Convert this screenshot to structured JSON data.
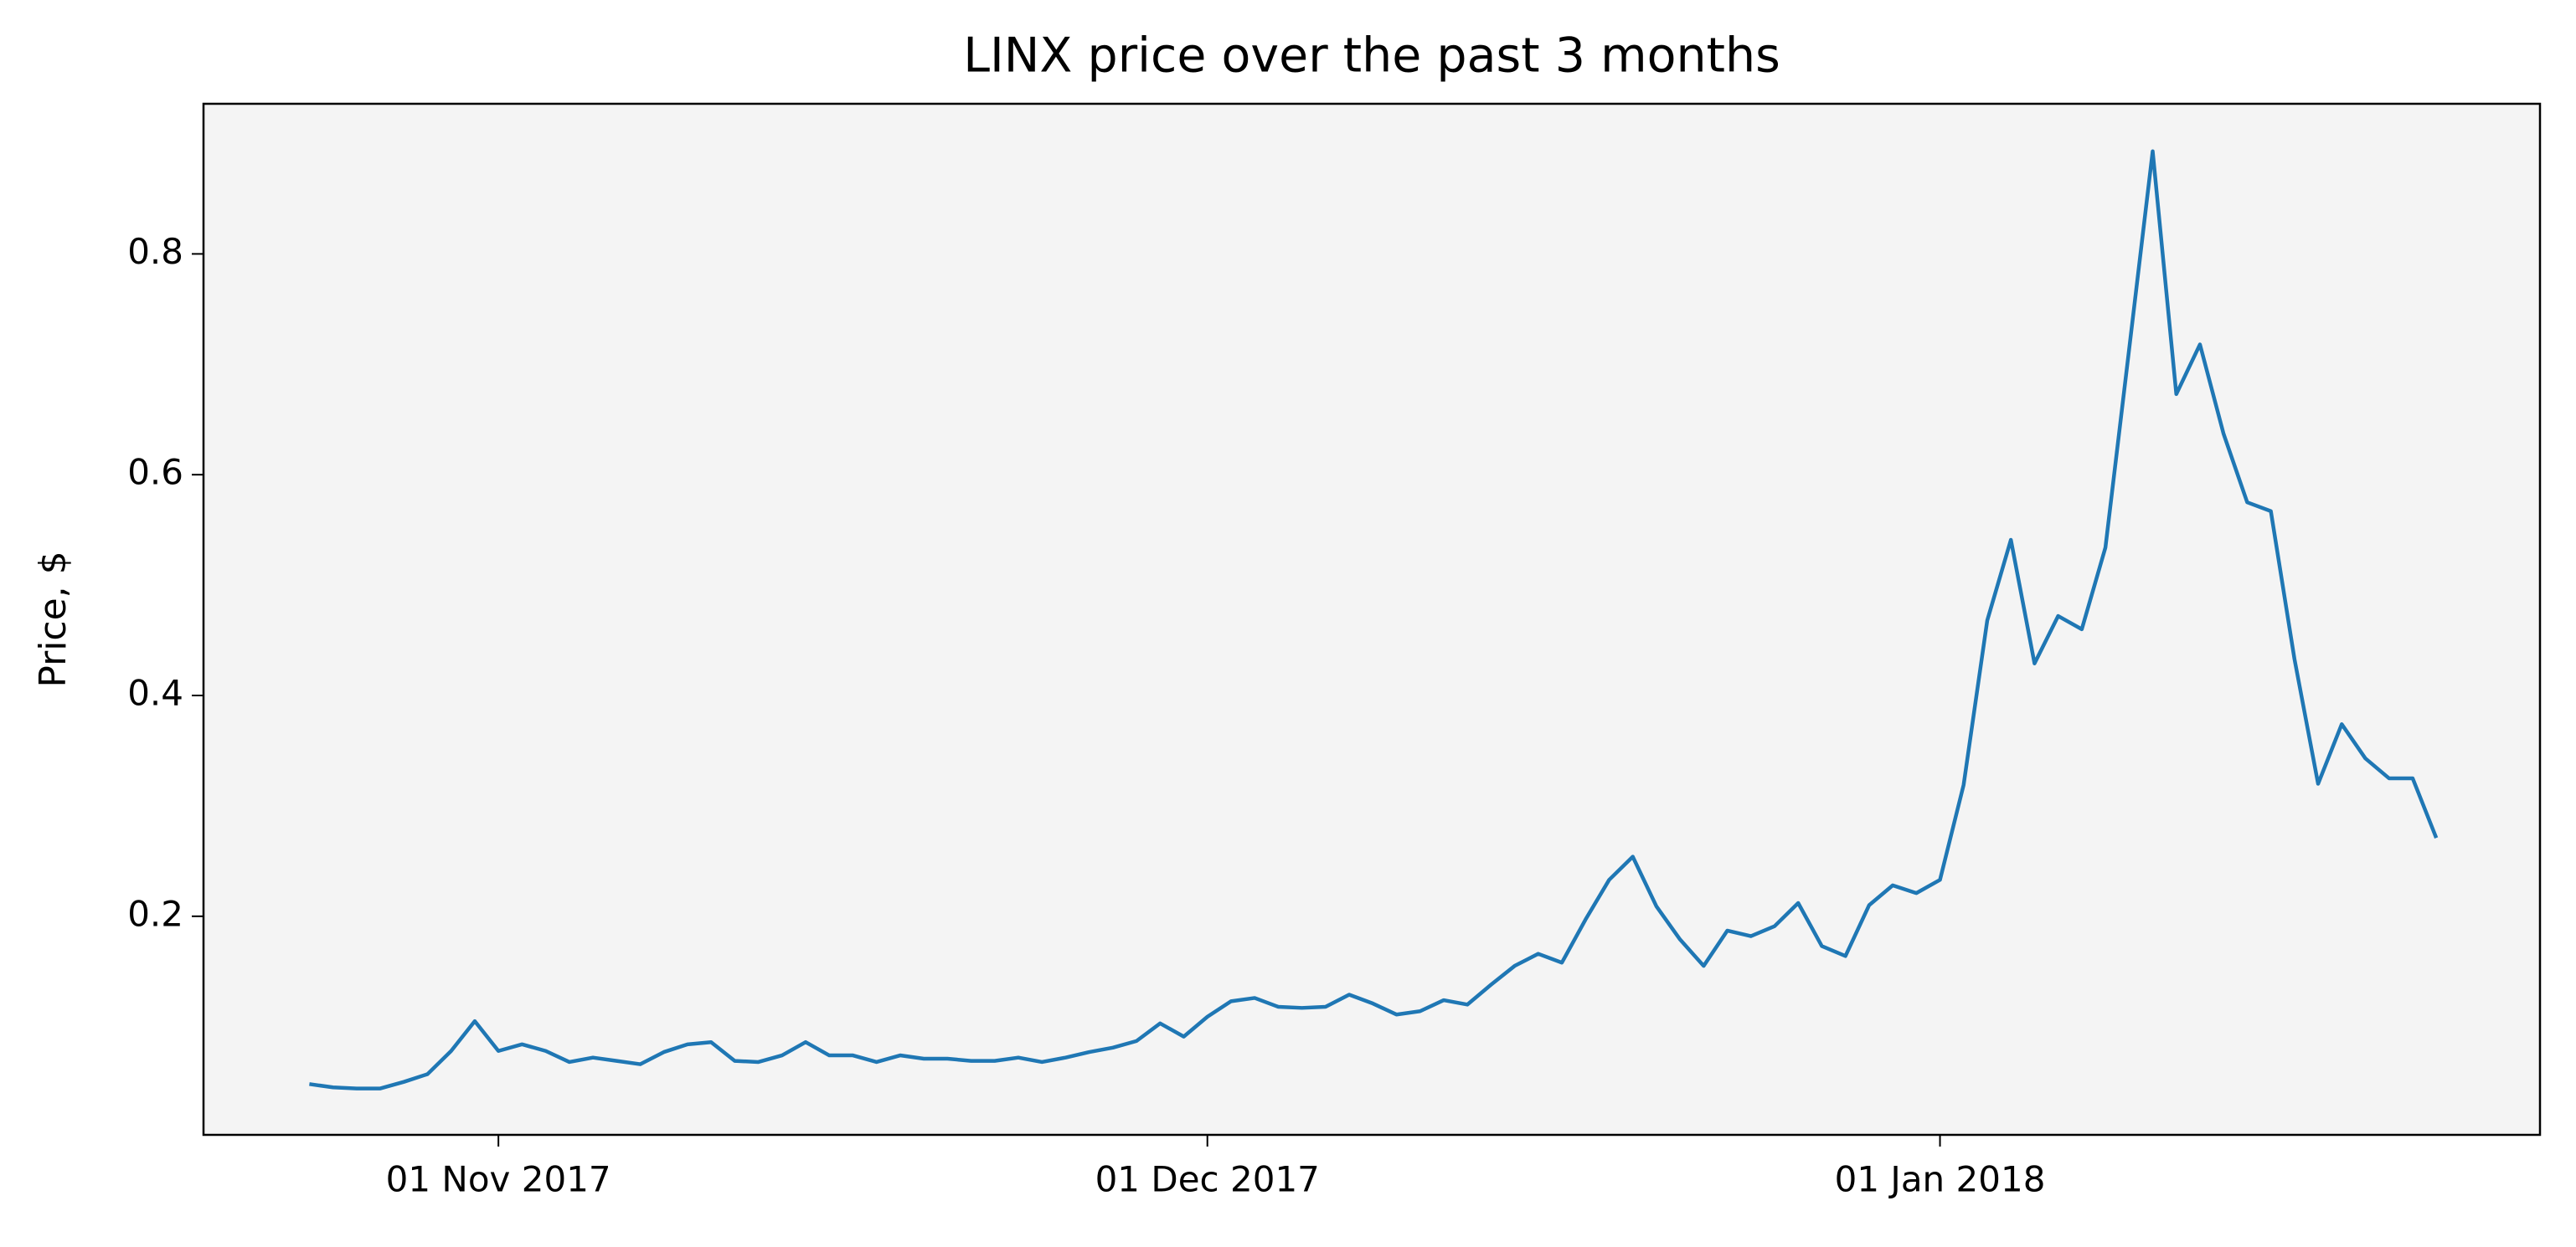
{
  "chart_data": {
    "type": "line",
    "title": "LINX price over the past 3 months",
    "ylabel": "Price, $",
    "color": "#1f77b4",
    "x": [
      "2017-10-24",
      "2017-10-25",
      "2017-10-26",
      "2017-10-27",
      "2017-10-28",
      "2017-10-29",
      "2017-10-30",
      "2017-10-31",
      "2017-11-01",
      "2017-11-02",
      "2017-11-03",
      "2017-11-04",
      "2017-11-05",
      "2017-11-06",
      "2017-11-07",
      "2017-11-08",
      "2017-11-09",
      "2017-11-10",
      "2017-11-11",
      "2017-11-12",
      "2017-11-13",
      "2017-11-14",
      "2017-11-15",
      "2017-11-16",
      "2017-11-17",
      "2017-11-18",
      "2017-11-19",
      "2017-11-20",
      "2017-11-21",
      "2017-11-22",
      "2017-11-23",
      "2017-11-24",
      "2017-11-25",
      "2017-11-26",
      "2017-11-27",
      "2017-11-28",
      "2017-11-29",
      "2017-11-30",
      "2017-12-01",
      "2017-12-02",
      "2017-12-03",
      "2017-12-04",
      "2017-12-05",
      "2017-12-06",
      "2017-12-07",
      "2017-12-08",
      "2017-12-09",
      "2017-12-10",
      "2017-12-11",
      "2017-12-12",
      "2017-12-13",
      "2017-12-14",
      "2017-12-15",
      "2017-12-16",
      "2017-12-17",
      "2017-12-18",
      "2017-12-19",
      "2017-12-20",
      "2017-12-21",
      "2017-12-22",
      "2017-12-23",
      "2017-12-24",
      "2017-12-25",
      "2017-12-26",
      "2017-12-27",
      "2017-12-28",
      "2017-12-29",
      "2017-12-30",
      "2017-12-31",
      "2018-01-01",
      "2018-01-02",
      "2018-01-03",
      "2018-01-04",
      "2018-01-05",
      "2018-01-06",
      "2018-01-07",
      "2018-01-08",
      "2018-01-09",
      "2018-01-10",
      "2018-01-11",
      "2018-01-12",
      "2018-01-13",
      "2018-01-14",
      "2018-01-15",
      "2018-01-16",
      "2018-01-17",
      "2018-01-18",
      "2018-01-19",
      "2018-01-20",
      "2018-01-21",
      "2018-01-22"
    ],
    "values": [
      0.048,
      0.045,
      0.044,
      0.044,
      0.05,
      0.057,
      0.078,
      0.105,
      0.078,
      0.084,
      0.078,
      0.068,
      0.072,
      0.069,
      0.066,
      0.077,
      0.084,
      0.086,
      0.069,
      0.068,
      0.074,
      0.086,
      0.074,
      0.074,
      0.068,
      0.074,
      0.071,
      0.071,
      0.069,
      0.069,
      0.072,
      0.068,
      0.072,
      0.077,
      0.081,
      0.087,
      0.103,
      0.091,
      0.109,
      0.123,
      0.126,
      0.118,
      0.117,
      0.118,
      0.129,
      0.121,
      0.111,
      0.114,
      0.124,
      0.12,
      0.138,
      0.155,
      0.166,
      0.158,
      0.197,
      0.233,
      0.254,
      0.209,
      0.179,
      0.155,
      0.187,
      0.182,
      0.191,
      0.212,
      0.173,
      0.164,
      0.21,
      0.228,
      0.221,
      0.233,
      0.319,
      0.468,
      0.541,
      0.429,
      0.472,
      0.46,
      0.534,
      0.713,
      0.893,
      0.673,
      0.718,
      0.637,
      0.575,
      0.567,
      0.433,
      0.32,
      0.374,
      0.343,
      0.325,
      0.325,
      0.271
    ],
    "xlim": [
      "2017-10-19T12:30",
      "2018-01-26T09:20"
    ],
    "xticks": [
      {
        "value": "2017-11-01",
        "label": "01 Nov 2017"
      },
      {
        "value": "2017-12-01",
        "label": "01 Dec 2017"
      },
      {
        "value": "2018-01-01",
        "label": "01 Jan 2018"
      }
    ],
    "ylim": [
      0.002,
      0.936
    ],
    "yticks": [
      0.2,
      0.4,
      0.6,
      0.8
    ],
    "grid": false
  }
}
